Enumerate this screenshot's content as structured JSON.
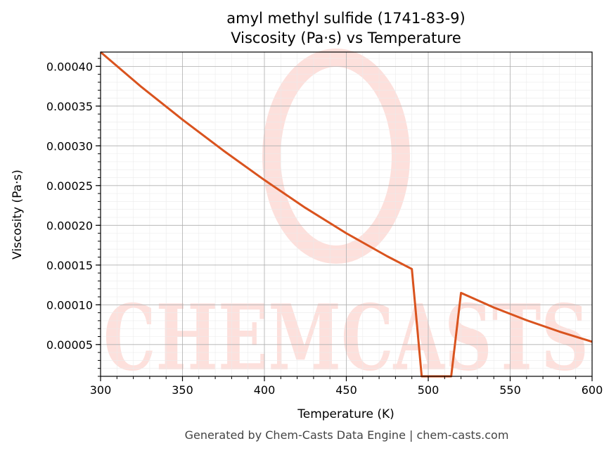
{
  "chart_data": {
    "type": "line",
    "title": "amyl methyl sulfide (1741-83-9)",
    "subtitle": "Viscosity (Pa·s) vs Temperature",
    "xlabel": "Temperature (K)",
    "ylabel": "Viscosity (Pa·s)",
    "xlim": [
      300,
      600
    ],
    "ylim": [
      1e-05,
      0.000418
    ],
    "x_ticks": [
      300,
      350,
      400,
      450,
      500,
      550,
      600
    ],
    "x_tick_labels": [
      "300",
      "350",
      "400",
      "450",
      "500",
      "550",
      "600"
    ],
    "y_ticks": [
      5e-05,
      0.0001,
      0.00015,
      0.0002,
      0.00025,
      0.0003,
      0.00035,
      0.0004
    ],
    "y_tick_labels": [
      "0.00005",
      "0.00010",
      "0.00015",
      "0.00020",
      "0.00025",
      "0.00030",
      "0.00035",
      "0.00040"
    ],
    "grid": true,
    "series": [
      {
        "color": "#d9531e",
        "x": [
          300,
          325,
          350,
          375,
          400,
          425,
          450,
          475,
          490,
          496,
          514,
          520,
          540,
          560,
          580,
          600
        ],
        "y": [
          0.000418,
          0.000374,
          0.000333,
          0.000294,
          0.000257,
          0.000222,
          0.00019,
          0.000161,
          0.000145,
          1e-05,
          1e-05,
          0.000115,
          9.66e-05,
          8.06e-05,
          6.63e-05,
          5.35e-05
        ]
      }
    ]
  },
  "watermark": {
    "text": "CHEMCASTS",
    "color": "#fde0dc"
  },
  "footer": "Generated by Chem-Casts Data Engine | chem-casts.com"
}
